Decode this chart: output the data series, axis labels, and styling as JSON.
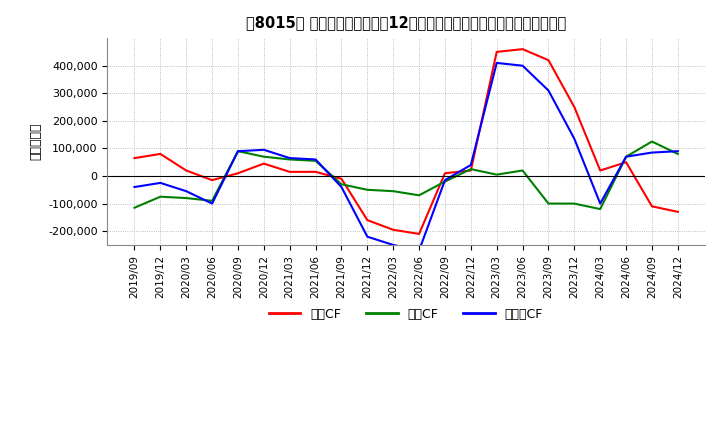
{
  "title": "［8015］ キャッシュフローの12か月移動合計の対前年同期増減額の推移",
  "ylabel": "（百万円）",
  "ylim": [
    -250000,
    500000
  ],
  "yticks": [
    -200000,
    -100000,
    0,
    100000,
    200000,
    300000,
    400000
  ],
  "legend_labels": [
    "営業CF",
    "投資CF",
    "フリーCF"
  ],
  "colors": {
    "eigyo": "#ff0000",
    "toshi": "#008000",
    "free": "#0000ff"
  },
  "dates": [
    "2019/09",
    "2019/12",
    "2020/03",
    "2020/06",
    "2020/09",
    "2020/12",
    "2021/03",
    "2021/06",
    "2021/09",
    "2021/12",
    "2022/03",
    "2022/06",
    "2022/09",
    "2022/12",
    "2023/03",
    "2023/06",
    "2023/09",
    "2023/12",
    "2024/03",
    "2024/06",
    "2024/09",
    "2024/12"
  ],
  "eigyo_cf": [
    65000,
    80000,
    20000,
    -15000,
    10000,
    45000,
    15000,
    15000,
    -10000,
    -160000,
    -195000,
    -210000,
    10000,
    20000,
    450000,
    460000,
    420000,
    250000,
    20000,
    50000,
    -110000,
    -130000
  ],
  "toshi_cf": [
    -115000,
    -75000,
    -80000,
    -90000,
    90000,
    70000,
    60000,
    55000,
    -30000,
    -50000,
    -55000,
    -70000,
    -20000,
    25000,
    5000,
    20000,
    -100000,
    -100000,
    -120000,
    70000,
    125000,
    80000
  ],
  "free_cf": [
    -40000,
    -25000,
    -55000,
    -100000,
    90000,
    95000,
    65000,
    60000,
    -40000,
    -220000,
    -250000,
    -270000,
    -15000,
    40000,
    410000,
    400000,
    310000,
    135000,
    -100000,
    70000,
    85000,
    90000
  ]
}
